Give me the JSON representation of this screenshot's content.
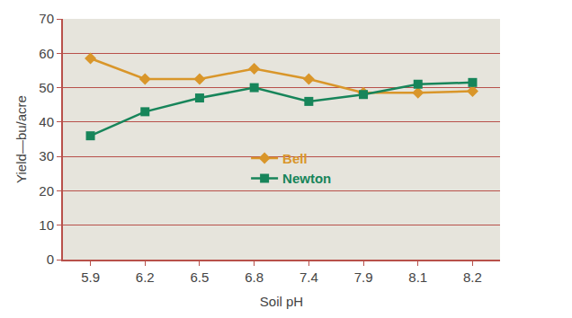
{
  "chart_data": {
    "type": "line",
    "x_label": "Soil pH",
    "y_label": "Yield—bu/acre",
    "categories": [
      "5.9",
      "6.2",
      "6.5",
      "6.8",
      "7.4",
      "7.9",
      "8.1",
      "8.2"
    ],
    "series": [
      {
        "name": "Bell",
        "color": "#d9962a",
        "marker": "diamond",
        "values": [
          58.5,
          52.5,
          52.5,
          55.5,
          52.5,
          48.5,
          48.5,
          49
        ]
      },
      {
        "name": "Newton",
        "color": "#17855a",
        "marker": "square",
        "values": [
          36,
          43,
          47,
          50,
          46,
          48,
          51,
          51.5
        ]
      }
    ],
    "ylim": [
      0,
      70
    ],
    "yticks": [
      0,
      10,
      20,
      30,
      40,
      50,
      60,
      70
    ],
    "grid": true,
    "legend": "center"
  }
}
